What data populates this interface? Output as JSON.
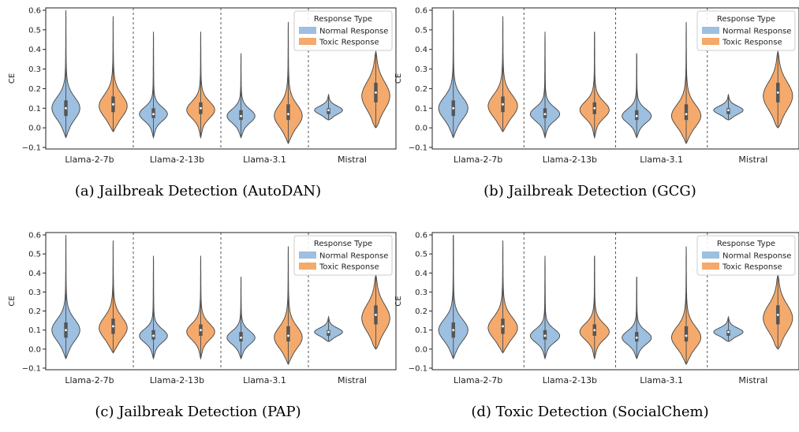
{
  "colors": {
    "normal": "#9dbfe0",
    "toxic": "#f4aa6c",
    "stroke": "#444444",
    "box": "#555555"
  },
  "chart_data": [
    {
      "type": "violin",
      "caption": "(a) Jailbreak Detection (AutoDAN)",
      "ylabel": "CE",
      "ylim": [
        -0.1,
        0.6
      ],
      "yticks": [
        "−0.1",
        "0.0",
        "0.1",
        "0.2",
        "0.3",
        "0.4",
        "0.5",
        "0.6"
      ],
      "categories": [
        "Llama-2-7b",
        "Llama-2-13b",
        "Llama-3.1",
        "Mistral"
      ],
      "legend": {
        "title": "Response Type",
        "entries": [
          "Normal Response",
          "Toxic Response"
        ],
        "position": "top-right"
      },
      "series": [
        {
          "name": "Normal Response",
          "stats": [
            {
              "min": -0.05,
              "max": 0.6,
              "q1": 0.06,
              "median": 0.1,
              "q3": 0.14,
              "mode": 0.1
            },
            {
              "min": -0.05,
              "max": 0.49,
              "q1": 0.05,
              "median": 0.07,
              "q3": 0.1,
              "mode": 0.07
            },
            {
              "min": -0.05,
              "max": 0.38,
              "q1": 0.04,
              "median": 0.06,
              "q3": 0.09,
              "mode": 0.06
            },
            {
              "min": 0.04,
              "max": 0.17,
              "q1": 0.07,
              "median": 0.09,
              "q3": 0.1,
              "mode": 0.09
            }
          ]
        },
        {
          "name": "Toxic Response",
          "stats": [
            {
              "min": -0.02,
              "max": 0.57,
              "q1": 0.08,
              "median": 0.12,
              "q3": 0.16,
              "mode": 0.11
            },
            {
              "min": -0.05,
              "max": 0.49,
              "q1": 0.07,
              "median": 0.1,
              "q3": 0.13,
              "mode": 0.09
            },
            {
              "min": -0.08,
              "max": 0.54,
              "q1": 0.04,
              "median": 0.07,
              "q3": 0.12,
              "mode": 0.06
            },
            {
              "min": 0.0,
              "max": 0.39,
              "q1": 0.13,
              "median": 0.18,
              "q3": 0.23,
              "mode": 0.16
            }
          ]
        }
      ]
    },
    {
      "type": "violin",
      "caption": "(b) Jailbreak Detection (GCG)",
      "ylabel": "CE",
      "ylim": [
        -0.1,
        0.6
      ],
      "yticks": [
        "−0.1",
        "0.0",
        "0.1",
        "0.2",
        "0.3",
        "0.4",
        "0.5",
        "0.6"
      ],
      "categories": [
        "Llama-2-7b",
        "Llama-2-13b",
        "Llama-3.1",
        "Mistral"
      ],
      "legend": {
        "title": "Response Type",
        "entries": [
          "Normal Response",
          "Toxic Response"
        ],
        "position": "top-right"
      },
      "series": [
        {
          "name": "Normal Response",
          "stats": [
            {
              "min": -0.05,
              "max": 0.6,
              "q1": 0.06,
              "median": 0.1,
              "q3": 0.14,
              "mode": 0.1
            },
            {
              "min": -0.05,
              "max": 0.49,
              "q1": 0.05,
              "median": 0.07,
              "q3": 0.1,
              "mode": 0.07
            },
            {
              "min": -0.05,
              "max": 0.38,
              "q1": 0.04,
              "median": 0.06,
              "q3": 0.09,
              "mode": 0.06
            },
            {
              "min": 0.04,
              "max": 0.17,
              "q1": 0.07,
              "median": 0.09,
              "q3": 0.1,
              "mode": 0.09
            }
          ]
        },
        {
          "name": "Toxic Response",
          "stats": [
            {
              "min": -0.02,
              "max": 0.57,
              "q1": 0.08,
              "median": 0.12,
              "q3": 0.16,
              "mode": 0.11
            },
            {
              "min": -0.05,
              "max": 0.49,
              "q1": 0.07,
              "median": 0.1,
              "q3": 0.13,
              "mode": 0.09
            },
            {
              "min": -0.08,
              "max": 0.54,
              "q1": 0.04,
              "median": 0.07,
              "q3": 0.12,
              "mode": 0.06
            },
            {
              "min": 0.0,
              "max": 0.39,
              "q1": 0.13,
              "median": 0.18,
              "q3": 0.23,
              "mode": 0.16
            }
          ]
        }
      ]
    },
    {
      "type": "violin",
      "caption": "(c) Jailbreak Detection (PAP)",
      "ylabel": "CE",
      "ylim": [
        -0.1,
        0.6
      ],
      "yticks": [
        "−0.1",
        "0.0",
        "0.1",
        "0.2",
        "0.3",
        "0.4",
        "0.5",
        "0.6"
      ],
      "categories": [
        "Llama-2-7b",
        "Llama-2-13b",
        "Llama-3.1",
        "Mistral"
      ],
      "legend": {
        "title": "Response Type",
        "entries": [
          "Normal Response",
          "Toxic Response"
        ],
        "position": "top-right"
      },
      "series": [
        {
          "name": "Normal Response",
          "stats": [
            {
              "min": -0.05,
              "max": 0.6,
              "q1": 0.06,
              "median": 0.1,
              "q3": 0.14,
              "mode": 0.1
            },
            {
              "min": -0.05,
              "max": 0.49,
              "q1": 0.05,
              "median": 0.07,
              "q3": 0.1,
              "mode": 0.07
            },
            {
              "min": -0.05,
              "max": 0.38,
              "q1": 0.04,
              "median": 0.06,
              "q3": 0.09,
              "mode": 0.06
            },
            {
              "min": 0.04,
              "max": 0.17,
              "q1": 0.07,
              "median": 0.09,
              "q3": 0.1,
              "mode": 0.09
            }
          ]
        },
        {
          "name": "Toxic Response",
          "stats": [
            {
              "min": -0.02,
              "max": 0.57,
              "q1": 0.08,
              "median": 0.12,
              "q3": 0.16,
              "mode": 0.11
            },
            {
              "min": -0.05,
              "max": 0.49,
              "q1": 0.07,
              "median": 0.1,
              "q3": 0.13,
              "mode": 0.09
            },
            {
              "min": -0.08,
              "max": 0.54,
              "q1": 0.04,
              "median": 0.07,
              "q3": 0.12,
              "mode": 0.06
            },
            {
              "min": 0.0,
              "max": 0.39,
              "q1": 0.13,
              "median": 0.18,
              "q3": 0.23,
              "mode": 0.16
            }
          ]
        }
      ]
    },
    {
      "type": "violin",
      "caption": "(d) Toxic Detection (SocialChem)",
      "ylabel": "CE",
      "ylim": [
        -0.1,
        0.6
      ],
      "yticks": [
        "−0.1",
        "0.0",
        "0.1",
        "0.2",
        "0.3",
        "0.4",
        "0.5",
        "0.6"
      ],
      "categories": [
        "Llama-2-7b",
        "Llama-2-13b",
        "Llama-3.1",
        "Mistral"
      ],
      "legend": {
        "title": "Response Type",
        "entries": [
          "Normal Response",
          "Toxic Response"
        ],
        "position": "top-right"
      },
      "series": [
        {
          "name": "Normal Response",
          "stats": [
            {
              "min": -0.05,
              "max": 0.6,
              "q1": 0.06,
              "median": 0.1,
              "q3": 0.14,
              "mode": 0.1
            },
            {
              "min": -0.05,
              "max": 0.49,
              "q1": 0.05,
              "median": 0.07,
              "q3": 0.1,
              "mode": 0.07
            },
            {
              "min": -0.05,
              "max": 0.38,
              "q1": 0.04,
              "median": 0.06,
              "q3": 0.09,
              "mode": 0.06
            },
            {
              "min": 0.04,
              "max": 0.17,
              "q1": 0.07,
              "median": 0.09,
              "q3": 0.1,
              "mode": 0.09
            }
          ]
        },
        {
          "name": "Toxic Response",
          "stats": [
            {
              "min": -0.02,
              "max": 0.57,
              "q1": 0.08,
              "median": 0.12,
              "q3": 0.16,
              "mode": 0.11
            },
            {
              "min": -0.05,
              "max": 0.49,
              "q1": 0.07,
              "median": 0.1,
              "q3": 0.13,
              "mode": 0.09
            },
            {
              "min": -0.08,
              "max": 0.54,
              "q1": 0.04,
              "median": 0.07,
              "q3": 0.12,
              "mode": 0.06
            },
            {
              "min": 0.0,
              "max": 0.39,
              "q1": 0.13,
              "median": 0.18,
              "q3": 0.23,
              "mode": 0.16
            }
          ]
        }
      ]
    }
  ]
}
